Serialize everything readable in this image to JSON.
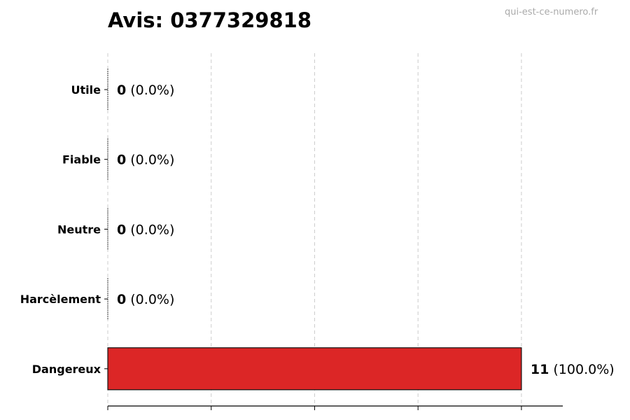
{
  "chart_data": {
    "type": "bar",
    "orientation": "horizontal",
    "title": "Avis: 0377329818",
    "watermark": "qui-est-ce-numero.fr",
    "categories": [
      "Utile",
      "Fiable",
      "Neutre",
      "Harcèlement",
      "Dangereux"
    ],
    "values": [
      0,
      0,
      0,
      0,
      11
    ],
    "labels": [
      "(0.0%)",
      "(0.0%)",
      "(0.0%)",
      "(0.0%)",
      "(100.0%)"
    ],
    "colors": [
      "#2e7d32",
      "#66bb6a",
      "#9e9e9e",
      "#ff9800",
      "#dc2626"
    ],
    "xlim": [
      0,
      12.1
    ],
    "xticks": [
      0,
      2.75,
      5.5,
      8.25,
      11
    ],
    "xtick_labels_shown": false,
    "grid": "x dashed",
    "xlabel": "",
    "ylabel": ""
  }
}
